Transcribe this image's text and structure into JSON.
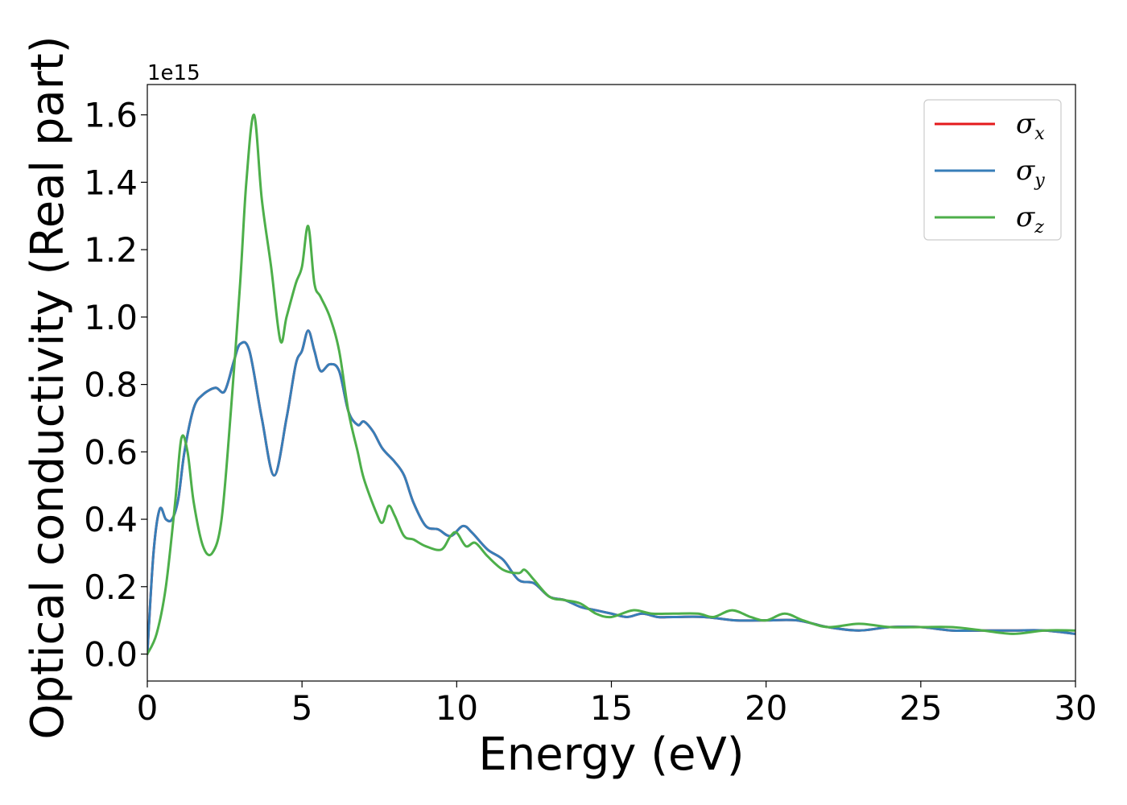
{
  "chart_data": {
    "type": "line",
    "xlabel": "Energy (eV)",
    "ylabel": "Optical conductivity (Real part)",
    "y_offset_label": "1e15",
    "xlim": [
      0,
      30
    ],
    "ylim": [
      -0.08,
      1.69
    ],
    "x_ticks": [
      0,
      5,
      10,
      15,
      20,
      25,
      30
    ],
    "x_tick_labels": [
      "0",
      "5",
      "10",
      "15",
      "20",
      "25",
      "30"
    ],
    "y_ticks": [
      0.0,
      0.2,
      0.4,
      0.6,
      0.8,
      1.0,
      1.2,
      1.4,
      1.6
    ],
    "y_tick_labels": [
      "0.0",
      "0.2",
      "0.4",
      "0.6",
      "0.8",
      "1.0",
      "1.2",
      "1.4",
      "1.6"
    ],
    "grid": false,
    "legend_position": "top-right",
    "series": [
      {
        "name": "σx",
        "symbol": "σ",
        "sub": "x",
        "color": "#e41a1c",
        "x": [
          0,
          0.2,
          0.4,
          0.6,
          0.8,
          1.0,
          1.2,
          1.5,
          1.8,
          2.2,
          2.5,
          2.8,
          3.0,
          3.3,
          3.7,
          4.1,
          4.5,
          4.8,
          5.0,
          5.2,
          5.4,
          5.6,
          5.9,
          6.2,
          6.5,
          6.8,
          7.0,
          7.3,
          7.6,
          8.0,
          8.3,
          8.6,
          9.0,
          9.4,
          9.8,
          10.2,
          10.5,
          11.0,
          11.5,
          12.0,
          12.5,
          13.0,
          13.5,
          14.0,
          14.5,
          15.0,
          15.5,
          16.0,
          16.5,
          17.0,
          18.0,
          19.0,
          20.0,
          21.0,
          22.0,
          23.0,
          24.0,
          25.0,
          26.0,
          27.0,
          28.0,
          29.0,
          30.0
        ],
        "y": [
          0.0,
          0.3,
          0.43,
          0.4,
          0.4,
          0.46,
          0.6,
          0.73,
          0.77,
          0.79,
          0.78,
          0.87,
          0.92,
          0.9,
          0.7,
          0.53,
          0.7,
          0.86,
          0.9,
          0.96,
          0.9,
          0.84,
          0.86,
          0.84,
          0.72,
          0.68,
          0.69,
          0.66,
          0.61,
          0.57,
          0.53,
          0.45,
          0.38,
          0.37,
          0.35,
          0.38,
          0.36,
          0.31,
          0.28,
          0.22,
          0.21,
          0.17,
          0.16,
          0.14,
          0.13,
          0.12,
          0.11,
          0.12,
          0.11,
          0.11,
          0.11,
          0.1,
          0.1,
          0.1,
          0.08,
          0.07,
          0.08,
          0.08,
          0.07,
          0.07,
          0.07,
          0.07,
          0.06
        ]
      },
      {
        "name": "σy",
        "symbol": "σ",
        "sub": "y",
        "color": "#377eb8",
        "x": [
          0,
          0.2,
          0.4,
          0.6,
          0.8,
          1.0,
          1.2,
          1.5,
          1.8,
          2.2,
          2.5,
          2.8,
          3.0,
          3.3,
          3.7,
          4.1,
          4.5,
          4.8,
          5.0,
          5.2,
          5.4,
          5.6,
          5.9,
          6.2,
          6.5,
          6.8,
          7.0,
          7.3,
          7.6,
          8.0,
          8.3,
          8.6,
          9.0,
          9.4,
          9.8,
          10.2,
          10.5,
          11.0,
          11.5,
          12.0,
          12.5,
          13.0,
          13.5,
          14.0,
          14.5,
          15.0,
          15.5,
          16.0,
          16.5,
          17.0,
          18.0,
          19.0,
          20.0,
          21.0,
          22.0,
          23.0,
          24.0,
          25.0,
          26.0,
          27.0,
          28.0,
          29.0,
          30.0
        ],
        "y": [
          0.0,
          0.3,
          0.43,
          0.4,
          0.4,
          0.46,
          0.6,
          0.73,
          0.77,
          0.79,
          0.78,
          0.87,
          0.92,
          0.9,
          0.7,
          0.53,
          0.7,
          0.86,
          0.9,
          0.96,
          0.9,
          0.84,
          0.86,
          0.84,
          0.72,
          0.68,
          0.69,
          0.66,
          0.61,
          0.57,
          0.53,
          0.45,
          0.38,
          0.37,
          0.35,
          0.38,
          0.36,
          0.31,
          0.28,
          0.22,
          0.21,
          0.17,
          0.16,
          0.14,
          0.13,
          0.12,
          0.11,
          0.12,
          0.11,
          0.11,
          0.11,
          0.1,
          0.1,
          0.1,
          0.08,
          0.07,
          0.08,
          0.08,
          0.07,
          0.07,
          0.07,
          0.07,
          0.06
        ]
      },
      {
        "name": "σz",
        "symbol": "σ",
        "sub": "z",
        "color": "#4daf4a",
        "x": [
          0,
          0.3,
          0.6,
          0.9,
          1.1,
          1.3,
          1.5,
          1.8,
          2.1,
          2.4,
          2.7,
          3.0,
          3.2,
          3.45,
          3.7,
          4.0,
          4.3,
          4.5,
          4.8,
          5.0,
          5.2,
          5.4,
          5.6,
          5.9,
          6.2,
          6.5,
          6.8,
          7.0,
          7.4,
          7.6,
          7.8,
          8.0,
          8.3,
          8.6,
          9.0,
          9.5,
          9.8,
          10.0,
          10.3,
          10.6,
          11.0,
          11.5,
          12.0,
          12.2,
          12.5,
          13.0,
          13.5,
          14.0,
          14.5,
          15.0,
          15.7,
          16.3,
          17.0,
          17.8,
          18.3,
          18.9,
          19.5,
          20.0,
          20.6,
          21.2,
          22.0,
          23.0,
          24.0,
          25.0,
          26.0,
          27.0,
          28.0,
          29.0,
          30.0
        ],
        "y": [
          0.0,
          0.06,
          0.2,
          0.45,
          0.64,
          0.6,
          0.45,
          0.32,
          0.3,
          0.4,
          0.72,
          1.1,
          1.4,
          1.6,
          1.35,
          1.15,
          0.93,
          1.0,
          1.1,
          1.15,
          1.27,
          1.1,
          1.06,
          1.0,
          0.9,
          0.72,
          0.6,
          0.52,
          0.42,
          0.39,
          0.44,
          0.41,
          0.35,
          0.34,
          0.32,
          0.31,
          0.35,
          0.36,
          0.32,
          0.33,
          0.29,
          0.25,
          0.24,
          0.25,
          0.22,
          0.17,
          0.16,
          0.15,
          0.12,
          0.11,
          0.13,
          0.12,
          0.12,
          0.12,
          0.11,
          0.13,
          0.11,
          0.1,
          0.12,
          0.1,
          0.08,
          0.09,
          0.08,
          0.08,
          0.08,
          0.07,
          0.06,
          0.07,
          0.07
        ]
      }
    ]
  }
}
